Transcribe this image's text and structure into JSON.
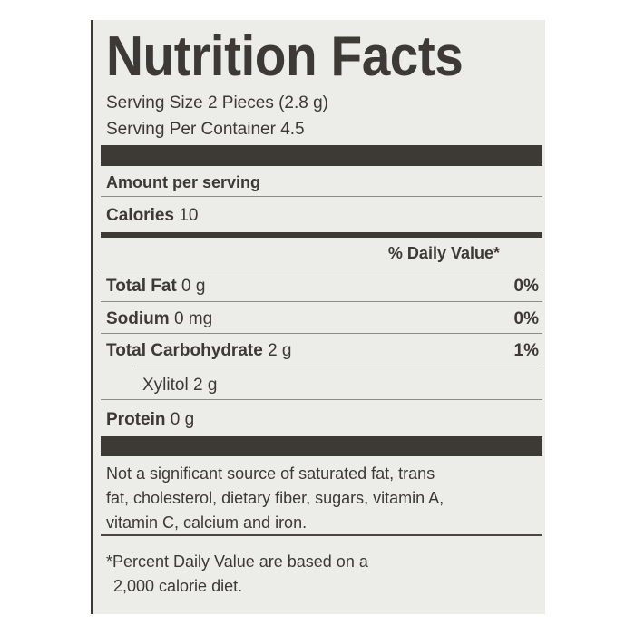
{
  "title": "Nutrition Facts",
  "serving_size": "Serving Size 2 Pieces (2.8 g)",
  "servings_per_container": "Serving Per Container 4.5",
  "amount_per_serving": "Amount per serving",
  "calories": {
    "label": "Calories",
    "value": "10"
  },
  "daily_value_header": "% Daily Value*",
  "nutrients": [
    {
      "label": "Total Fat",
      "amount": "0 g",
      "dv": "0%"
    },
    {
      "label": "Sodium",
      "amount": "0 mg",
      "dv": "0%"
    },
    {
      "label": "Total Carbohydrate",
      "amount": "2 g",
      "dv": "1%"
    },
    {
      "label": "Xylitol",
      "amount": "2 g"
    },
    {
      "label": "Protein",
      "amount": "0 g"
    }
  ],
  "not_significant": [
    "Not a significant source of saturated fat, trans",
    "fat, cholesterol, dietary fiber, sugars, vitamin A,",
    "vitamin C, calcium and iron."
  ],
  "footnote": [
    "*Percent Daily Value are based on a",
    "2,000 calorie diet."
  ]
}
